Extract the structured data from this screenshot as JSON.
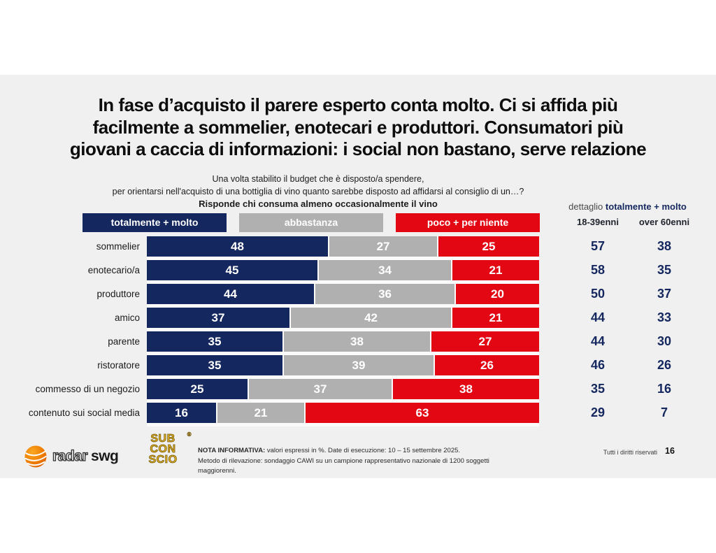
{
  "colors": {
    "navy": "#14275e",
    "gray": "#b0b0b0",
    "red": "#e30613",
    "slide_bg": "#f0f0f0",
    "gold": "#e8b62a"
  },
  "title": {
    "line1": "In fase d’acquisto il parere esperto conta molto. Ci si affida più",
    "line2": "facilmente a sommelier, enotecari e produttori. Consumatori più",
    "line3": "giovani a caccia di informazioni: i social non bastano, serve relazione"
  },
  "subtitle": {
    "line1": "Una volta stabilito il budget che è disposto/a spendere,",
    "line2": "per orientarsi nell'acquisto di una bottiglia di vino quanto sarebbe disposto ad affidarsi al consiglio di un…?",
    "line3": "Risponde chi consuma almeno occasionalmente il vino"
  },
  "chart_data": {
    "type": "bar",
    "stacked": true,
    "orientation": "horizontal",
    "xlim": [
      0,
      100
    ],
    "unit": "%",
    "categories": [
      "sommelier",
      "enotecario/a",
      "produttore",
      "amico",
      "parente",
      "ristoratore",
      "commesso di un negozio",
      "contenuto sui social media"
    ],
    "series": [
      {
        "name": "totalmente + molto",
        "color": "#14275e",
        "values": [
          48,
          45,
          44,
          37,
          35,
          35,
          25,
          16
        ]
      },
      {
        "name": "abbastanza",
        "color": "#b0b0b0",
        "values": [
          27,
          34,
          36,
          42,
          38,
          39,
          37,
          21
        ]
      },
      {
        "name": "poco + per niente",
        "color": "#e30613",
        "values": [
          25,
          21,
          20,
          21,
          27,
          26,
          38,
          63
        ]
      }
    ],
    "detail": {
      "header_prefix": "dettaglio",
      "header_highlight": "totalmente + molto",
      "columns": [
        "18-39enni",
        "over 60enni"
      ],
      "values": [
        [
          57,
          38
        ],
        [
          58,
          35
        ],
        [
          50,
          37
        ],
        [
          44,
          33
        ],
        [
          44,
          30
        ],
        [
          46,
          26
        ],
        [
          35,
          16
        ],
        [
          29,
          7
        ]
      ]
    }
  },
  "footer": {
    "logo_radar": "radar",
    "logo_swg": "swg",
    "logo_sub_lines": [
      "SUB",
      "CON",
      "SCIO"
    ],
    "logo_sub_reg": "®",
    "note_bold": "NOTA INFORMATIVA:",
    "note_rest": " valori espressi in %. Date di esecuzione: 10 – 15 settembre 2025.",
    "note_line2": "Metodo di rilevazione: sondaggio CAWI su un campione rappresentativo nazionale di 1200 soggetti maggiorenni.",
    "rights": "Tutti i diritti riservati",
    "page_number": "16"
  }
}
